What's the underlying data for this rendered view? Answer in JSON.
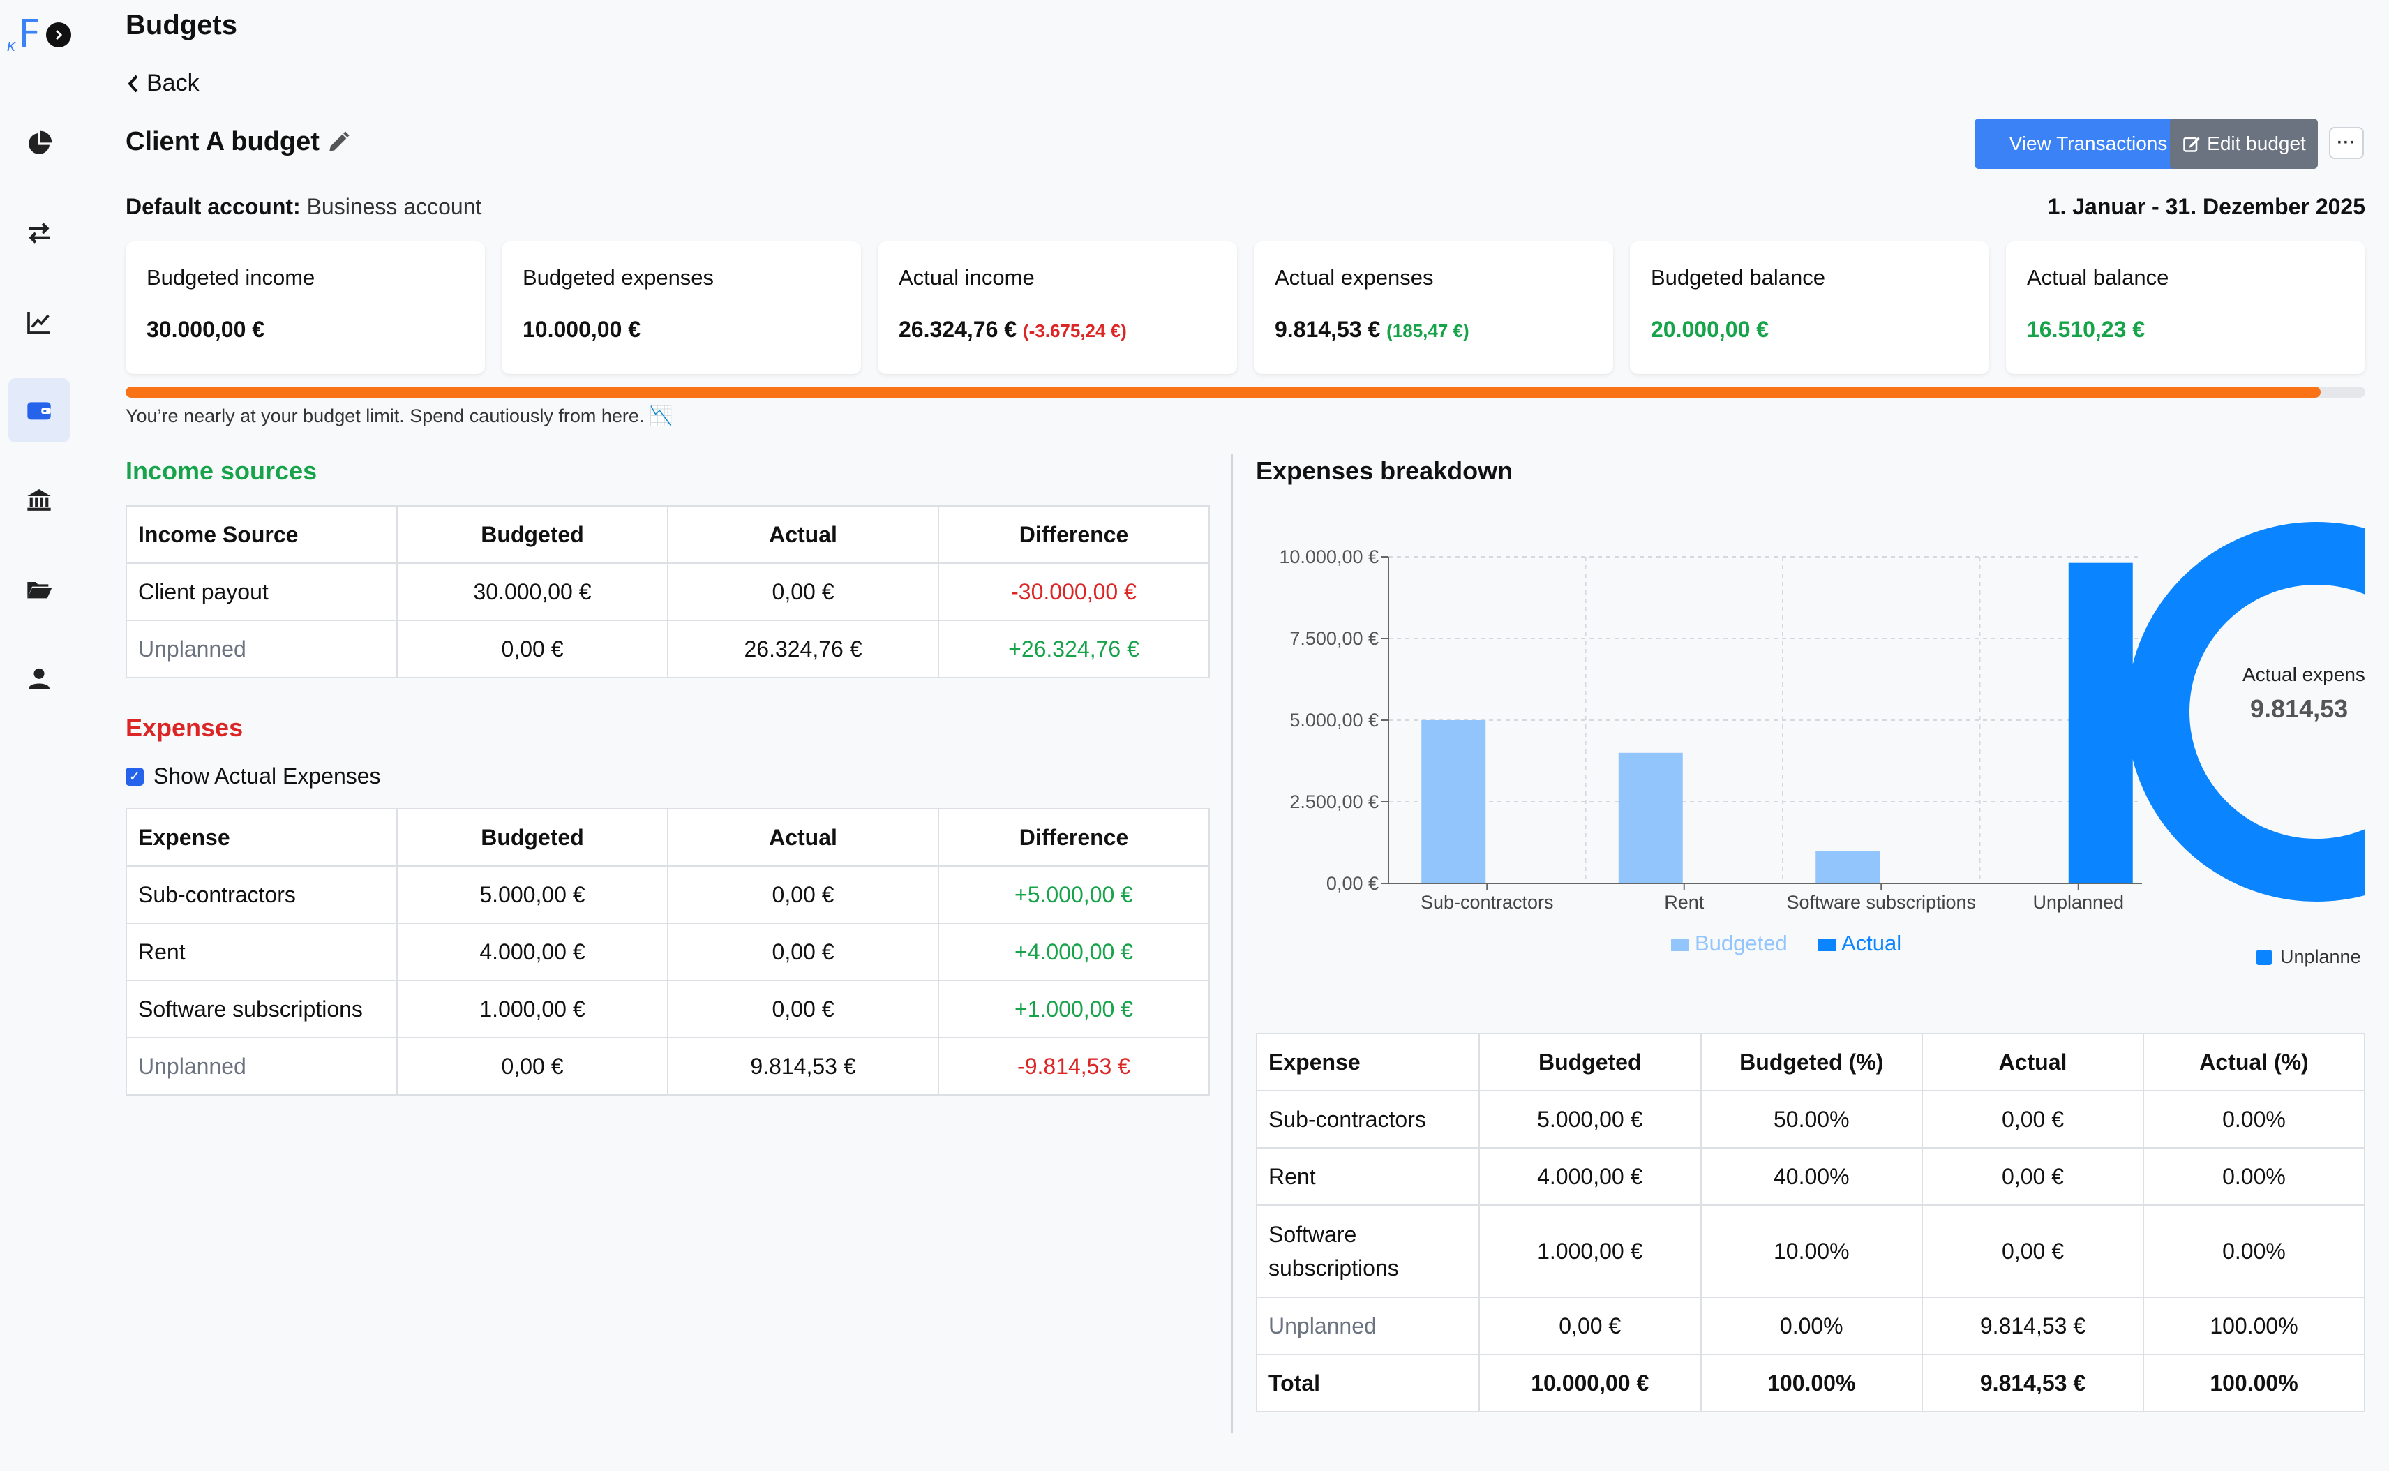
{
  "sidebar": {
    "logo_letter": "F",
    "logo_mark": "κ",
    "items": [
      {
        "icon": "pie-chart-icon",
        "active": false
      },
      {
        "icon": "transfer-arrows-icon",
        "active": false
      },
      {
        "icon": "line-chart-icon",
        "active": false
      },
      {
        "icon": "wallet-icon",
        "active": true
      },
      {
        "icon": "bank-icon",
        "active": false
      },
      {
        "icon": "folder-icon",
        "active": false
      },
      {
        "icon": "user-icon",
        "active": false
      }
    ]
  },
  "header": {
    "title": "Budgets",
    "back_label": "Back",
    "budget_name": "Client A budget",
    "view_transactions_label": "View Transactions",
    "edit_budget_label": "Edit budget",
    "more_label": "···",
    "default_account_label": "Default account:",
    "default_account_value": "Business account",
    "date_range": "1. Januar - 31. Dezember 2025"
  },
  "summary_cards": [
    {
      "label": "Budgeted income",
      "value": "30.000,00 €",
      "diff": "",
      "tone": "default"
    },
    {
      "label": "Budgeted expenses",
      "value": "10.000,00 €",
      "diff": "",
      "tone": "default"
    },
    {
      "label": "Actual income",
      "value": "26.324,76 €",
      "diff": "(-3.675,24 €)",
      "tone": "default",
      "diff_tone": "red"
    },
    {
      "label": "Actual expenses",
      "value": "9.814,53 €",
      "diff": "(185,47 €)",
      "tone": "default",
      "diff_tone": "green"
    },
    {
      "label": "Budgeted balance",
      "value": "20.000,00 €",
      "diff": "",
      "tone": "green"
    },
    {
      "label": "Actual balance",
      "value": "16.510,23 €",
      "diff": "",
      "tone": "green"
    }
  ],
  "progress": {
    "fraction": 0.98,
    "message": "You’re nearly at your budget limit. Spend cautiously from here. 📉",
    "color": "#f97316"
  },
  "income": {
    "title": "Income sources",
    "headers": [
      "Income Source",
      "Budgeted",
      "Actual",
      "Difference"
    ],
    "rows": [
      {
        "name": "Client payout",
        "budgeted": "30.000,00 €",
        "actual": "0,00 €",
        "difference": "-30.000,00 €",
        "diff_tone": "red",
        "muted": false
      },
      {
        "name": "Unplanned",
        "budgeted": "0,00 €",
        "actual": "26.324,76 €",
        "difference": "+26.324,76 €",
        "diff_tone": "green",
        "muted": true
      }
    ]
  },
  "expenses": {
    "title": "Expenses",
    "show_actual_label": "Show Actual Expenses",
    "show_actual_checked": true,
    "headers": [
      "Expense",
      "Budgeted",
      "Actual",
      "Difference"
    ],
    "rows": [
      {
        "name": "Sub-contractors",
        "budgeted": "5.000,00 €",
        "actual": "0,00 €",
        "difference": "+5.000,00 €",
        "diff_tone": "green",
        "muted": false
      },
      {
        "name": "Rent",
        "budgeted": "4.000,00 €",
        "actual": "0,00 €",
        "difference": "+4.000,00 €",
        "diff_tone": "green",
        "muted": false
      },
      {
        "name": "Software subscriptions",
        "budgeted": "1.000,00 €",
        "actual": "0,00 €",
        "difference": "+1.000,00 €",
        "diff_tone": "green",
        "muted": false
      },
      {
        "name": "Unplanned",
        "budgeted": "0,00 €",
        "actual": "9.814,53 €",
        "difference": "-9.814,53 €",
        "diff_tone": "red",
        "muted": true
      }
    ]
  },
  "breakdown": {
    "title": "Expenses breakdown",
    "table_headers": [
      "Expense",
      "Budgeted",
      "Budgeted (%)",
      "Actual",
      "Actual (%)"
    ],
    "table_rows": [
      {
        "name": "Sub-contractors",
        "budgeted": "5.000,00 €",
        "budgeted_pct": "50.00%",
        "actual": "0,00 €",
        "actual_pct": "0.00%",
        "muted": false,
        "bold": false
      },
      {
        "name": "Rent",
        "budgeted": "4.000,00 €",
        "budgeted_pct": "40.00%",
        "actual": "0,00 €",
        "actual_pct": "0.00%",
        "muted": false,
        "bold": false
      },
      {
        "name": "Software subscriptions",
        "budgeted": "1.000,00 €",
        "budgeted_pct": "10.00%",
        "actual": "0,00 €",
        "actual_pct": "0.00%",
        "muted": false,
        "bold": false
      },
      {
        "name": "Unplanned",
        "budgeted": "0,00 €",
        "budgeted_pct": "0.00%",
        "actual": "9.814,53 €",
        "actual_pct": "100.00%",
        "muted": true,
        "bold": false
      },
      {
        "name": "Total",
        "budgeted": "10.000,00 €",
        "budgeted_pct": "100.00%",
        "actual": "9.814,53 €",
        "actual_pct": "100.00%",
        "muted": false,
        "bold": true
      }
    ],
    "donut": {
      "center_label": "Actual expens",
      "center_value": "9.814,53",
      "legend_label": "Unplanne",
      "color": "#0a84ff"
    }
  },
  "chart_data": [
    {
      "type": "bar",
      "categories": [
        "Sub-contractors",
        "Rent",
        "Software subscriptions",
        "Unplanned"
      ],
      "series": [
        {
          "name": "Budgeted",
          "values": [
            5000,
            4000,
            1000,
            0
          ],
          "color": "#93c5fd"
        },
        {
          "name": "Actual",
          "values": [
            0,
            0,
            0,
            9814.53
          ],
          "color": "#0a84ff"
        }
      ],
      "ylim": [
        0,
        10000
      ],
      "yticks": [
        0,
        2500,
        5000,
        7500,
        10000
      ],
      "ytick_labels": [
        "0,00 €",
        "2.500,00 €",
        "5.000,00 €",
        "7.500,00 €",
        "10.000,00 €"
      ],
      "grid": true,
      "legend": "bottom"
    },
    {
      "type": "pie",
      "categories": [
        "Unplanned"
      ],
      "values": [
        9814.53
      ],
      "legend": "bottom"
    }
  ]
}
